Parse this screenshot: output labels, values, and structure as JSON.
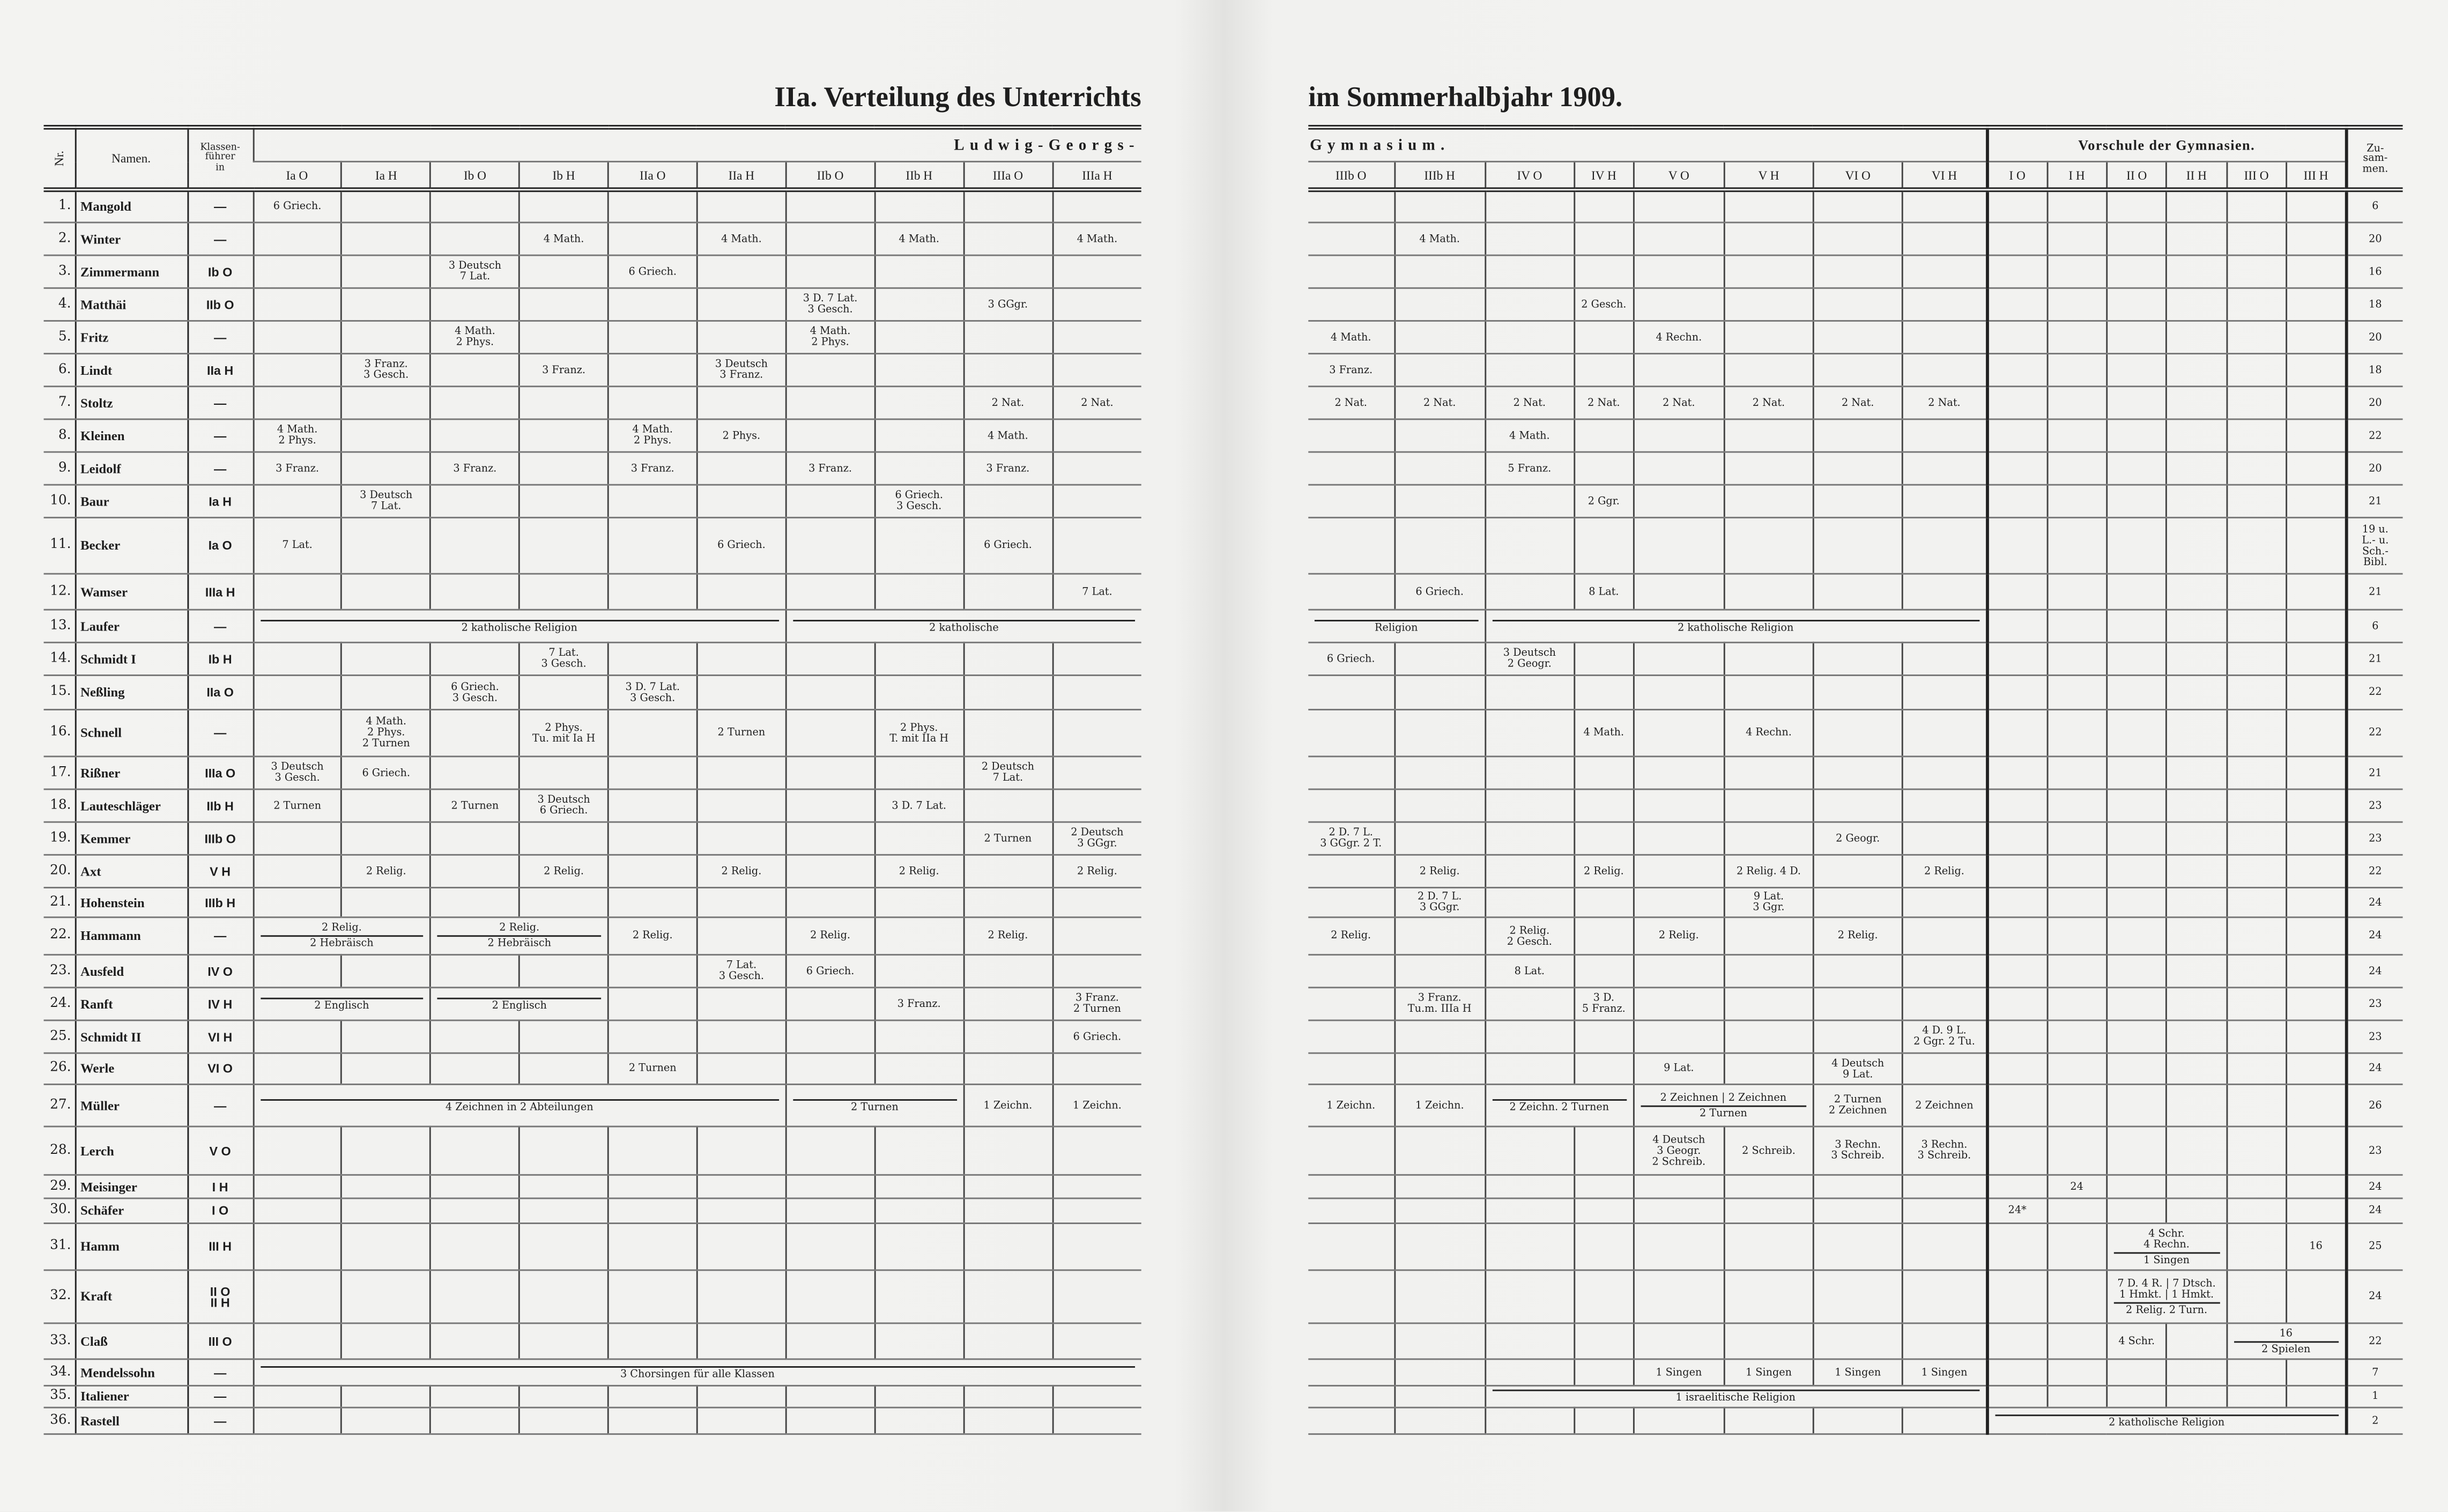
{
  "title_left": "IIa. Verteilung des Unterrichts",
  "title_right": "im Sommerhalbjahr 1909.",
  "left_header": {
    "nr": "Nr.",
    "name": "Namen.",
    "klassenfuehrer": "Klassen-\nführer\nin",
    "group": "Ludwig-Georgs-",
    "columns": [
      "Ia O",
      "Ia H",
      "Ib O",
      "Ib H",
      "IIa O",
      "IIa H",
      "IIb O",
      "IIb H",
      "IIIa O",
      "IIIa H"
    ]
  },
  "right_header": {
    "group": "Gymnasium.",
    "columns": [
      "IIIb O",
      "IIIb H",
      "IV O",
      "IV H",
      "V O",
      "V H",
      "VI O",
      "VI H"
    ],
    "vorschule_group": "Vorschule der Gymnasien.",
    "vorschule_columns": [
      "I O",
      "I H",
      "II O",
      "II H",
      "III O",
      "III H"
    ],
    "total": "Zu-\nsam-\nmen."
  },
  "rows": [
    {
      "nr": "1.",
      "name": "Mangold",
      "kl": "—",
      "l": {
        "0": "6 Griech."
      },
      "r": {},
      "v": {},
      "tot": "6"
    },
    {
      "nr": "2.",
      "name": "Winter",
      "kl": "—",
      "l": {
        "3": "4 Math.",
        "5": "4 Math.",
        "7": "4 Math.",
        "9": "4 Math."
      },
      "r": {
        "1": "4 Math."
      },
      "v": {},
      "tot": "20"
    },
    {
      "nr": "3.",
      "name": "Zimmermann",
      "kl": "Ib O",
      "l": {
        "2": "3 Deutsch\n7 Lat.",
        "4": "6 Griech."
      },
      "r": {},
      "v": {},
      "tot": "16"
    },
    {
      "nr": "4.",
      "name": "Matthäi",
      "kl": "IIb O",
      "l": {
        "6": "3 D.  7 Lat.\n3 Gesch.",
        "8": "3 GGgr."
      },
      "r": {
        "3": "2 Gesch."
      },
      "v": {},
      "tot": "18"
    },
    {
      "nr": "5.",
      "name": "Fritz",
      "kl": "—",
      "l": {
        "2": "4 Math.\n2 Phys.",
        "6": "4 Math.\n2 Phys."
      },
      "r": {
        "0": "4 Math.",
        "4": "4 Rechn."
      },
      "v": {},
      "tot": "20"
    },
    {
      "nr": "6.",
      "name": "Lindt",
      "kl": "IIa H",
      "l": {
        "1": "3 Franz.\n3 Gesch.",
        "3": "3 Franz.",
        "5": "3 Deutsch\n3 Franz."
      },
      "r": {
        "0": "3 Franz."
      },
      "v": {},
      "tot": "18"
    },
    {
      "nr": "7.",
      "name": "Stoltz",
      "kl": "—",
      "l": {
        "8": "2 Nat.",
        "9": "2 Nat."
      },
      "r": {
        "0": "2 Nat.",
        "1": "2 Nat.",
        "2": "2 Nat.",
        "3": "2 Nat.",
        "4": "2 Nat.",
        "5": "2 Nat.",
        "6": "2 Nat.",
        "7": "2 Nat."
      },
      "v": {},
      "tot": "20"
    },
    {
      "nr": "8.",
      "name": "Kleinen",
      "kl": "—",
      "l": {
        "0": "4 Math.\n2 Phys.",
        "4": "4 Math.\n2 Phys.",
        "5": "2 Phys.",
        "8": "4 Math."
      },
      "r": {
        "2": "4 Math."
      },
      "v": {},
      "tot": "22"
    },
    {
      "nr": "9.",
      "name": "Leidolf",
      "kl": "—",
      "l": {
        "0": "3 Franz.",
        "2": "3 Franz.",
        "4": "3 Franz.",
        "6": "3 Franz.",
        "8": "3 Franz."
      },
      "r": {
        "2": "5 Franz."
      },
      "v": {},
      "tot": "20"
    },
    {
      "nr": "10.",
      "name": "Baur",
      "kl": "Ia H",
      "l": {
        "1": "3 Deutsch\n7 Lat.",
        "7": "6 Griech.\n3 Gesch."
      },
      "r": {
        "3": "2 Ggr."
      },
      "v": {},
      "tot": "21"
    },
    {
      "nr": "11.",
      "name": "Becker",
      "kl": "Ia O",
      "l": {
        "0": "7 Lat.",
        "5": "6 Griech.",
        "8": "6 Griech."
      },
      "r": {},
      "v": {},
      "tot": "19 u.\nL.- u.\nSch.-\nBibl."
    },
    {
      "nr": "12.",
      "name": "Wamser",
      "kl": "IIIa H",
      "l": {
        "9": "7 Lat."
      },
      "r": {
        "1": "6 Griech.",
        "3": "8 Lat."
      },
      "v": {},
      "tot": "21"
    },
    {
      "nr": "13.",
      "name": "Laufer",
      "kl": "—",
      "l": {
        "0": {
          "t": "2 katholische Religion",
          "span": 6
        },
        "6": {
          "t": "2 katholische",
          "span": 4
        }
      },
      "r": {
        "0": {
          "t": "Religion",
          "span": 2
        },
        "2": {
          "t": "2 katholische Religion",
          "span": 6
        }
      },
      "v": {},
      "tot": "6"
    },
    {
      "nr": "14.",
      "name": "Schmidt I",
      "kl": "Ib H",
      "l": {
        "3": "7 Lat.\n3 Gesch."
      },
      "r": {
        "0": "6 Griech.",
        "2": "3 Deutsch\n2 Geogr."
      },
      "v": {},
      "tot": "21"
    },
    {
      "nr": "15.",
      "name": "Neßling",
      "kl": "IIa O",
      "l": {
        "2": "6 Griech.\n3 Gesch.",
        "4": "3 D.  7 Lat.\n3 Gesch."
      },
      "r": {},
      "v": {},
      "tot": "22"
    },
    {
      "nr": "16.",
      "name": "Schnell",
      "kl": "—",
      "l": {
        "1": "4 Math.\n2 Phys.\n2 Turnen",
        "3": "2 Phys.\nTu. mit Ia H",
        "5": "2 Turnen",
        "7": "2 Phys.\nT. mit IIa H"
      },
      "r": {
        "3": "4 Math.",
        "5": "4 Rechn."
      },
      "v": {},
      "tot": "22"
    },
    {
      "nr": "17.",
      "name": "Rißner",
      "kl": "IIIa O",
      "l": {
        "0": "3 Deutsch\n3 Gesch.",
        "1": "6 Griech.",
        "8": "2 Deutsch\n7 Lat."
      },
      "r": {},
      "v": {},
      "tot": "21"
    },
    {
      "nr": "18.",
      "name": "Lauteschläger",
      "kl": "IIb H",
      "l": {
        "0": "2 Turnen",
        "2": "2 Turnen",
        "3": "3 Deutsch\n6 Griech.",
        "7": "3 D.  7 Lat."
      },
      "r": {},
      "v": {},
      "tot": "23"
    },
    {
      "nr": "19.",
      "name": "Kemmer",
      "kl": "IIIb O",
      "l": {
        "8": "2 Turnen",
        "9": "2 Deutsch\n3 GGgr."
      },
      "r": {
        "0": "2 D.  7 L.\n3 GGgr. 2 T.",
        "6": "2 Geogr."
      },
      "v": {},
      "tot": "23"
    },
    {
      "nr": "20.",
      "name": "Axt",
      "kl": "V H",
      "l": {
        "1": "2 Relig.",
        "3": "2 Relig.",
        "5": "2 Relig.",
        "7": "2 Relig.",
        "9": "2 Relig."
      },
      "r": {
        "1": "2 Relig.",
        "3": "2 Relig.",
        "5": "2 Relig. 4 D.",
        "7": "2 Relig."
      },
      "v": {},
      "tot": "22"
    },
    {
      "nr": "21.",
      "name": "Hohenstein",
      "kl": "IIIb H",
      "l": {},
      "r": {
        "1": "2 D.  7 L.\n3 GGgr.",
        "5": "9 Lat.\n3 Ggr."
      },
      "v": {},
      "tot": "24"
    },
    {
      "nr": "22.",
      "name": "Hammann",
      "kl": "—",
      "l": {
        "0": {
          "top": "2 Relig.",
          "t": "2 Hebräisch",
          "span": 2
        },
        "2": {
          "top": "2 Relig.",
          "t": "2 Hebräisch",
          "span": 2
        },
        "4": "2 Relig.",
        "6": "2 Relig.",
        "8": "2 Relig."
      },
      "r": {
        "0": "2 Relig.",
        "2": "2 Relig.\n2 Gesch.",
        "4": "2 Relig.",
        "6": "2 Relig."
      },
      "v": {},
      "tot": "24"
    },
    {
      "nr": "23.",
      "name": "Ausfeld",
      "kl": "IV O",
      "l": {
        "5": "7 Lat.\n3 Gesch.",
        "6": "6 Griech."
      },
      "r": {
        "2": "8 Lat."
      },
      "v": {},
      "tot": "24"
    },
    {
      "nr": "24.",
      "name": "Ranft",
      "kl": "IV H",
      "l": {
        "0": {
          "top": "",
          "t": "2 Englisch",
          "span": 2
        },
        "2": {
          "top": "",
          "t": "2 Englisch",
          "span": 2
        },
        "7": "3 Franz.",
        "9": "3 Franz.\n2 Turnen"
      },
      "r": {
        "1": "3 Franz.\nTu.m. IIIa H",
        "3": "3 D.\n5 Franz."
      },
      "v": {},
      "tot": "23"
    },
    {
      "nr": "25.",
      "name": "Schmidt II",
      "kl": "VI H",
      "l": {
        "9": "6 Griech."
      },
      "r": {
        "7": "4 D.  9 L.\n2 Ggr. 2 Tu."
      },
      "v": {},
      "tot": "23"
    },
    {
      "nr": "26.",
      "name": "Werle",
      "kl": "VI O",
      "l": {
        "4": "2 Turnen"
      },
      "r": {
        "4": "9 Lat.",
        "6": "4 Deutsch\n9 Lat."
      },
      "v": {},
      "tot": "24"
    },
    {
      "nr": "27.",
      "name": "Müller",
      "kl": "—",
      "l": {
        "0": {
          "top": "",
          "t": "4 Zeichnen in 2 Abteilungen",
          "span": 6
        },
        "6": {
          "top": "",
          "t": "2 Turnen",
          "span": 2
        },
        "8": "1 Zeichn.",
        "9": "1 Zeichn."
      },
      "r": {
        "0": "1 Zeichn.",
        "1": "1 Zeichn.",
        "2": {
          "top": "",
          "t": "2 Zeichn.   2 Turnen",
          "span": 2
        },
        "4": {
          "top": "2 Zeichnen | 2 Zeichnen",
          "t": "2 Turnen",
          "span": 2
        },
        "6": "2 Turnen\n2 Zeichnen",
        "7": "2 Zeichnen"
      },
      "v": {},
      "tot": "26"
    },
    {
      "nr": "28.",
      "name": "Lerch",
      "kl": "V O",
      "l": {},
      "r": {
        "4": "4 Deutsch\n3 Geogr.\n2 Schreib.",
        "5": "2 Schreib.",
        "6": "3 Rechn.\n3 Schreib.",
        "7": "3 Rechn.\n3 Schreib."
      },
      "v": {},
      "tot": "23"
    },
    {
      "nr": "29.",
      "name": "Meisinger",
      "kl": "I H",
      "l": {},
      "r": {},
      "v": {
        "1": "24"
      },
      "tot": "24"
    },
    {
      "nr": "30.",
      "name": "Schäfer",
      "kl": "I O",
      "l": {},
      "r": {},
      "v": {
        "0": "24*"
      },
      "tot": "24"
    },
    {
      "nr": "31.",
      "name": "Hamm",
      "kl": "III H",
      "l": {},
      "r": {},
      "v": {
        "2": {
          "top": "          4 Schr.\n          4 Rechn.",
          "t": "1 Singen",
          "span": 2
        },
        "5": "16"
      },
      "tot": "25"
    },
    {
      "nr": "32.",
      "name": "Kraft",
      "kl": "II O\nII H",
      "l": {},
      "r": {},
      "v": {
        "2": {
          "top": "7 D. 4 R. | 7 Dtsch.\n1 Hmkt. | 1 Hmkt.",
          "t": "2 Relig.  2 Turn.",
          "span": 2
        }
      },
      "tot": "24"
    },
    {
      "nr": "33.",
      "name": "Claß",
      "kl": "III O",
      "l": {},
      "r": {},
      "v": {
        "2": "4 Schr.",
        "4": {
          "top": "16",
          "t": "2 Spielen",
          "span": 2
        }
      },
      "tot": "22"
    },
    {
      "nr": "34.",
      "name": "Mendelssohn",
      "kl": "—",
      "l": {
        "0": {
          "t": "3 Chorsingen für alle Klassen",
          "span": 10
        }
      },
      "r": {
        "4": "1 Singen",
        "5": "1 Singen",
        "6": "1 Singen",
        "7": "1 Singen"
      },
      "v": {},
      "tot": "7"
    },
    {
      "nr": "35.",
      "name": "Italiener",
      "kl": "—",
      "l": {},
      "r": {
        "2": {
          "top": "",
          "t": "1 israelitische Religion",
          "span": 6
        }
      },
      "v": {},
      "tot": "1"
    },
    {
      "nr": "36.",
      "name": "Rastell",
      "kl": "—",
      "l": {},
      "r": {},
      "v": {
        "0": {
          "top": "",
          "t": "2 katholische Religion",
          "span": 6
        }
      },
      "tot": "2"
    }
  ]
}
